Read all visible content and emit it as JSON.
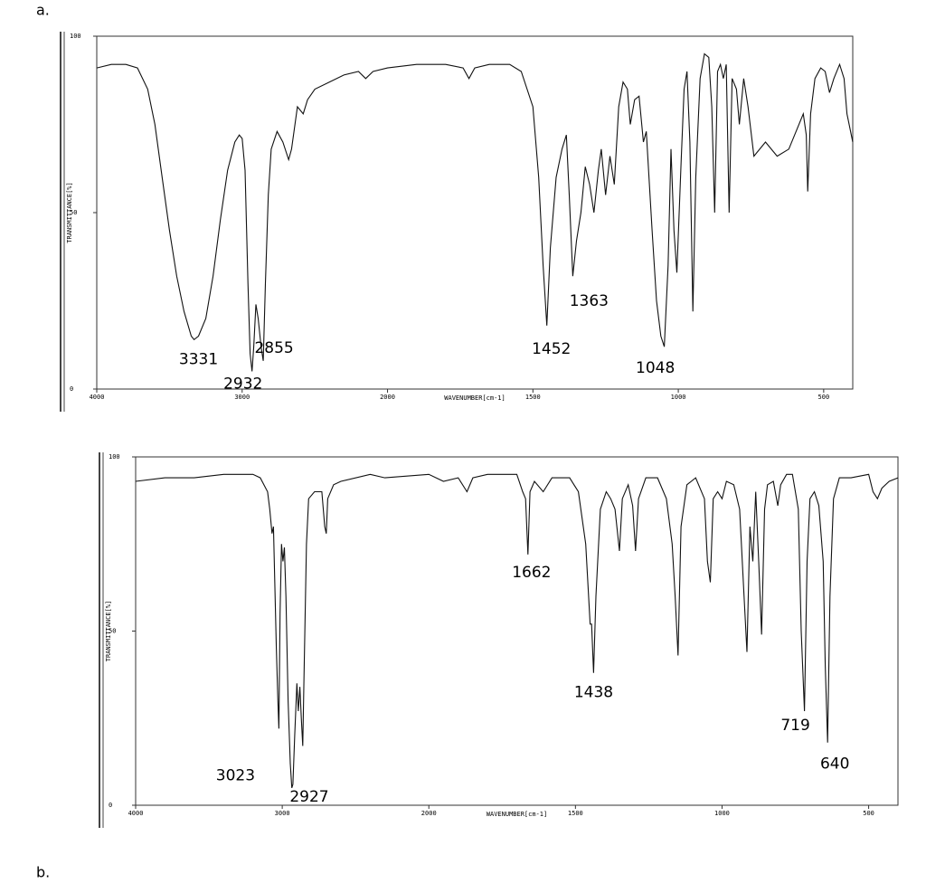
{
  "chart_data": [
    {
      "type": "line",
      "label": "a.",
      "xlabel": "WAVENUMBER[cm-1]",
      "ylabel": "TRANSMITTANCE[%]",
      "color": "#111111",
      "xlim": [
        4000,
        400
      ],
      "xticks": [
        4000,
        3000,
        2000,
        1500,
        1000,
        500
      ],
      "ylim": [
        0,
        100
      ],
      "yticks": [
        0,
        50,
        100
      ],
      "x": [
        4000,
        3900,
        3800,
        3720,
        3650,
        3600,
        3550,
        3500,
        3450,
        3400,
        3350,
        3331,
        3300,
        3250,
        3200,
        3150,
        3100,
        3050,
        3020,
        3000,
        2980,
        2960,
        2945,
        2932,
        2920,
        2905,
        2890,
        2870,
        2855,
        2840,
        2820,
        2800,
        2760,
        2720,
        2680,
        2660,
        2620,
        2580,
        2550,
        2500,
        2400,
        2300,
        2200,
        2150,
        2100,
        2000,
        1900,
        1800,
        1740,
        1720,
        1700,
        1650,
        1580,
        1540,
        1500,
        1480,
        1465,
        1452,
        1440,
        1420,
        1400,
        1385,
        1375,
        1363,
        1350,
        1335,
        1320,
        1305,
        1290,
        1275,
        1265,
        1250,
        1235,
        1220,
        1205,
        1190,
        1175,
        1165,
        1150,
        1135,
        1120,
        1110,
        1090,
        1075,
        1060,
        1048,
        1035,
        1025,
        1015,
        1005,
        990,
        980,
        970,
        960,
        950,
        940,
        925,
        910,
        895,
        885,
        875,
        865,
        855,
        845,
        835,
        825,
        815,
        800,
        790,
        775,
        760,
        740,
        700,
        660,
        620,
        590,
        570,
        560,
        555,
        545,
        530,
        510,
        495,
        480,
        465,
        445,
        430,
        420,
        400
      ],
      "values": [
        91,
        92,
        92,
        91,
        85,
        75,
        60,
        45,
        32,
        22,
        15,
        14,
        15,
        20,
        32,
        48,
        62,
        70,
        72,
        71,
        62,
        30,
        10,
        5,
        12,
        24,
        20,
        12,
        8,
        30,
        55,
        68,
        73,
        70,
        65,
        68,
        80,
        78,
        82,
        85,
        87,
        89,
        90,
        88,
        90,
        91,
        92,
        92,
        91,
        88,
        91,
        92,
        92,
        90,
        80,
        60,
        35,
        18,
        40,
        60,
        68,
        72,
        55,
        32,
        42,
        50,
        63,
        58,
        50,
        62,
        68,
        55,
        66,
        58,
        80,
        87,
        85,
        75,
        82,
        83,
        70,
        73,
        45,
        25,
        15,
        12,
        35,
        68,
        45,
        33,
        65,
        85,
        90,
        70,
        22,
        60,
        88,
        95,
        94,
        80,
        50,
        90,
        92,
        88,
        92,
        50,
        88,
        85,
        75,
        88,
        80,
        66,
        70,
        66,
        68,
        74,
        78,
        72,
        56,
        78,
        88,
        91,
        90,
        84,
        88,
        92,
        88,
        78,
        70
      ],
      "annotations": [
        {
          "text": "3331",
          "x": 3331,
          "y": 14
        },
        {
          "text": "2932",
          "x": 2932,
          "y": 5
        },
        {
          "text": "2855",
          "x": 2855,
          "y": 8
        },
        {
          "text": "1452",
          "x": 1452,
          "y": 18
        },
        {
          "text": "1363",
          "x": 1363,
          "y": 32
        },
        {
          "text": "1048",
          "x": 1048,
          "y": 12
        }
      ]
    },
    {
      "type": "line",
      "label": "b.",
      "xlabel": "WAVENUMBER[cm-1]",
      "ylabel": "TRANSMITTANCE[%]",
      "color": "#111111",
      "xlim": [
        4000,
        400
      ],
      "xticks": [
        4000,
        3000,
        2000,
        1500,
        1000,
        500
      ],
      "ylim": [
        0,
        100
      ],
      "yticks": [
        0,
        50,
        100
      ],
      "x": [
        4000,
        3800,
        3600,
        3400,
        3200,
        3150,
        3100,
        3085,
        3070,
        3060,
        3040,
        3030,
        3023,
        3015,
        3005,
        2995,
        2985,
        2975,
        2960,
        2945,
        2935,
        2927,
        2915,
        2900,
        2890,
        2880,
        2870,
        2860,
        2850,
        2835,
        2820,
        2780,
        2730,
        2710,
        2700,
        2690,
        2650,
        2600,
        2400,
        2300,
        2000,
        1950,
        1900,
        1870,
        1850,
        1800,
        1700,
        1680,
        1670,
        1662,
        1655,
        1640,
        1610,
        1580,
        1520,
        1490,
        1465,
        1450,
        1445,
        1438,
        1430,
        1415,
        1395,
        1380,
        1365,
        1350,
        1340,
        1320,
        1305,
        1295,
        1285,
        1260,
        1220,
        1190,
        1170,
        1160,
        1150,
        1140,
        1120,
        1090,
        1060,
        1050,
        1040,
        1030,
        1015,
        1000,
        985,
        960,
        940,
        925,
        915,
        905,
        895,
        885,
        875,
        865,
        855,
        845,
        825,
        810,
        800,
        780,
        760,
        740,
        730,
        719,
        710,
        700,
        685,
        670,
        655,
        648,
        640,
        632,
        620,
        600,
        560,
        500,
        485,
        470,
        455,
        430,
        400
      ],
      "values": [
        93,
        94,
        94,
        95,
        95,
        94,
        90,
        85,
        78,
        80,
        45,
        30,
        22,
        55,
        75,
        70,
        74,
        60,
        30,
        12,
        5,
        6,
        20,
        35,
        27,
        34,
        25,
        17,
        40,
        75,
        88,
        90,
        90,
        80,
        78,
        88,
        92,
        93,
        95,
        94,
        95,
        93,
        94,
        90,
        94,
        95,
        95,
        90,
        88,
        72,
        90,
        93,
        90,
        94,
        94,
        90,
        75,
        52,
        52,
        38,
        60,
        85,
        90,
        88,
        85,
        73,
        88,
        92,
        86,
        73,
        88,
        94,
        94,
        88,
        75,
        60,
        43,
        80,
        92,
        94,
        88,
        70,
        64,
        88,
        90,
        88,
        93,
        92,
        85,
        60,
        44,
        80,
        70,
        90,
        70,
        49,
        85,
        92,
        93,
        86,
        92,
        95,
        95,
        85,
        50,
        27,
        70,
        88,
        90,
        86,
        70,
        40,
        18,
        60,
        88,
        94,
        94,
        95,
        90,
        88,
        91,
        93,
        94
      ],
      "annotations": [
        {
          "text": "3023",
          "x": 3023,
          "y": 22
        },
        {
          "text": "2927",
          "x": 2927,
          "y": 6
        },
        {
          "text": "1662",
          "x": 1662,
          "y": 72
        },
        {
          "text": "1438",
          "x": 1438,
          "y": 38
        },
        {
          "text": "719",
          "x": 719,
          "y": 27
        },
        {
          "text": "640",
          "x": 640,
          "y": 18
        }
      ]
    }
  ]
}
